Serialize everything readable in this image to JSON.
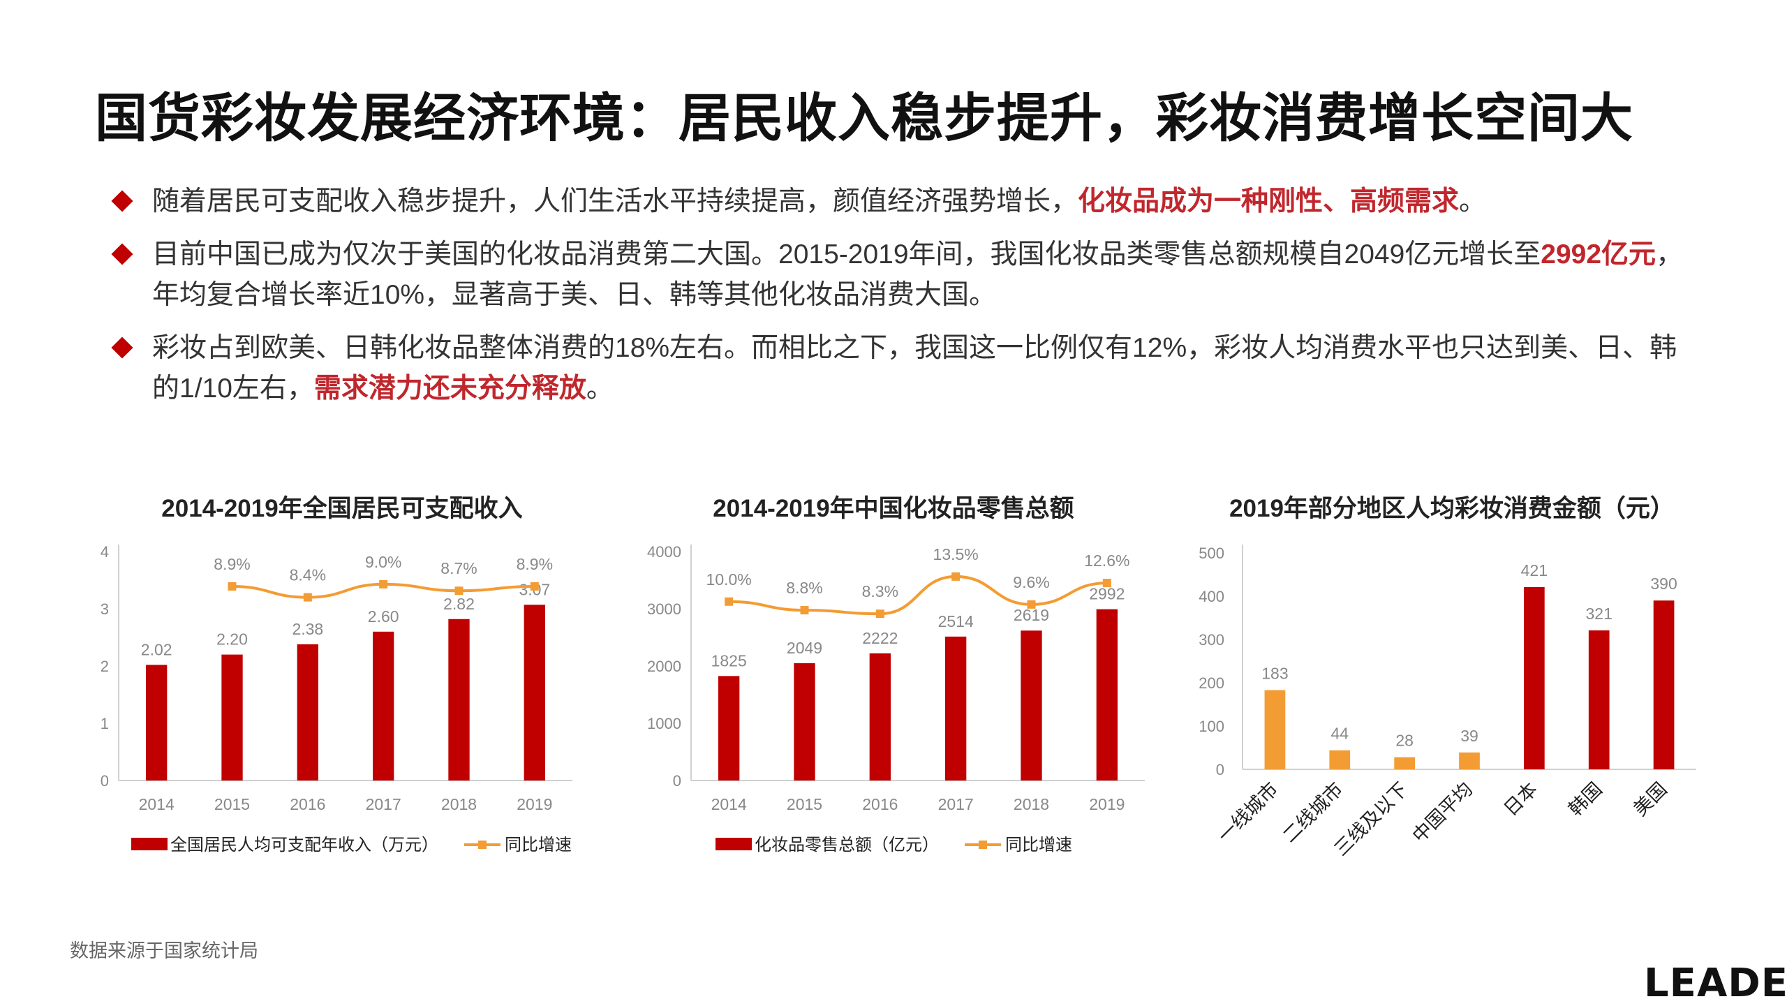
{
  "title": "国货彩妆发展经济环境：居民收入稳步提升，彩妆消费增长空间大",
  "bullets": [
    {
      "text": "随着居民可支配收入稳步提升，人们生活水平持续提高，颜值经济强势增长，",
      "highlight": "化妆品成为一种刚性、高频需求",
      "tail": "。"
    },
    {
      "text": "目前中国已成为仅次于美国的化妆品消费第二大国。2015-2019年间，我国化妆品类零售总额规模自2049亿元增长至",
      "highlight": "2992亿元",
      "tail": "，年均复合增长率近10%，显著高于美、日、韩等其他化妆品消费大国。"
    },
    {
      "text": "彩妆占到欧美、日韩化妆品整体消费的18%左右。而相比之下，我国这一比例仅有12%，彩妆人均消费水平也只达到美、日、韩的1/10左右，",
      "highlight": "需求潜力还未充分释放",
      "tail": "。"
    }
  ],
  "colors": {
    "bar_red": "#c00000",
    "line_orange": "#f39c33",
    "bar_orange": "#f39c33",
    "highlight": "#c0272d"
  },
  "chart_data": [
    {
      "type": "bar+line",
      "title": "2014-2019年全国居民可支配收入",
      "categories": [
        "2014",
        "2015",
        "2016",
        "2017",
        "2018",
        "2019"
      ],
      "series": [
        {
          "name": "全国居民人均可支配年收入（万元）",
          "type": "bar",
          "values": [
            2.02,
            2.2,
            2.38,
            2.6,
            2.82,
            3.07
          ],
          "labels": [
            "2.02",
            "2.20",
            "2.38",
            "2.60",
            "2.82",
            "3.07"
          ]
        },
        {
          "name": "同比增速",
          "type": "line",
          "values": [
            null,
            8.9,
            8.4,
            9.0,
            8.7,
            8.9
          ],
          "labels": [
            "",
            "8.9%",
            "8.4%",
            "9.0%",
            "8.7%",
            "8.9%"
          ]
        }
      ],
      "ylim": [
        0,
        4
      ],
      "yticks": [
        "0",
        "1",
        "2",
        "3",
        "4"
      ],
      "line_ylim": [
        0,
        10.5
      ]
    },
    {
      "type": "bar+line",
      "title": "2014-2019年中国化妆品零售总额",
      "categories": [
        "2014",
        "2015",
        "2016",
        "2017",
        "2018",
        "2019"
      ],
      "series": [
        {
          "name": "化妆品零售总额（亿元）",
          "type": "bar",
          "values": [
            1825,
            2049,
            2222,
            2514,
            2619,
            2992
          ],
          "labels": [
            "1825",
            "2049",
            "2222",
            "2514",
            "2619",
            "2992"
          ]
        },
        {
          "name": "同比增速",
          "type": "line",
          "values": [
            10.0,
            8.8,
            8.3,
            13.5,
            9.6,
            12.6
          ],
          "labels": [
            "10.0%",
            "8.8%",
            "8.3%",
            "13.5%",
            "9.6%",
            "12.6%"
          ]
        }
      ],
      "ylim": [
        0,
        4000
      ],
      "yticks": [
        "0",
        "1000",
        "2000",
        "3000",
        "4000"
      ],
      "line_ylim": [
        -15,
        17
      ]
    },
    {
      "type": "bar",
      "title": "2019年部分地区人均彩妆消费金额（元）",
      "categories": [
        "一线城市",
        "二线城市",
        "三线及以下",
        "中国平均",
        "日本",
        "韩国",
        "美国"
      ],
      "values": [
        183,
        44,
        28,
        39,
        421,
        321,
        390
      ],
      "labels": [
        "183",
        "44",
        "28",
        "39",
        "421",
        "321",
        "390"
      ],
      "bar_colors": [
        "orange",
        "orange",
        "orange",
        "orange",
        "red",
        "red",
        "red"
      ],
      "ylim": [
        0,
        500
      ],
      "yticks": [
        "0",
        "100",
        "200",
        "300",
        "400",
        "500"
      ]
    }
  ],
  "source": "数据来源于国家统计局",
  "logo": "LEADER"
}
